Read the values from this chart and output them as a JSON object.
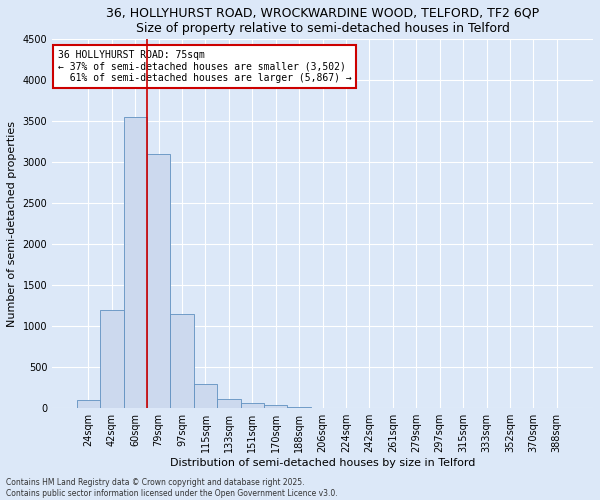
{
  "title1": "36, HOLLYHURST ROAD, WROCKWARDINE WOOD, TELFORD, TF2 6QP",
  "title2": "Size of property relative to semi-detached houses in Telford",
  "xlabel": "Distribution of semi-detached houses by size in Telford",
  "ylabel": "Number of semi-detached properties",
  "categories": [
    "24sqm",
    "42sqm",
    "60sqm",
    "79sqm",
    "97sqm",
    "115sqm",
    "133sqm",
    "151sqm",
    "170sqm",
    "188sqm",
    "206sqm",
    "224sqm",
    "242sqm",
    "261sqm",
    "279sqm",
    "297sqm",
    "315sqm",
    "333sqm",
    "352sqm",
    "370sqm",
    "388sqm"
  ],
  "values": [
    105,
    1200,
    3550,
    3100,
    1150,
    300,
    115,
    65,
    40,
    10,
    0,
    0,
    0,
    0,
    0,
    0,
    0,
    0,
    0,
    0,
    0
  ],
  "bar_color": "#ccd9ee",
  "bar_edge_color": "#6090c0",
  "property_size": "75sqm",
  "pct_smaller": 37,
  "n_smaller": 3502,
  "pct_larger": 61,
  "n_larger": 5867,
  "vline_color": "#cc0000",
  "annotation_box_color": "#cc0000",
  "ylim": [
    0,
    4500
  ],
  "yticks": [
    0,
    500,
    1000,
    1500,
    2000,
    2500,
    3000,
    3500,
    4000,
    4500
  ],
  "footer1": "Contains HM Land Registry data © Crown copyright and database right 2025.",
  "footer2": "Contains public sector information licensed under the Open Government Licence v3.0.",
  "bg_color": "#dce8f8",
  "plot_bg_color": "#dce8f8",
  "grid_color": "#ffffff",
  "title_fontsize": 9,
  "ylabel_fontsize": 8,
  "xlabel_fontsize": 8,
  "tick_fontsize": 7,
  "ann_fontsize": 7,
  "footer_fontsize": 5.5
}
